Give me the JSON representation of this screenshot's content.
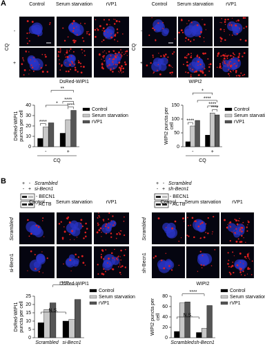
{
  "panel_a": {
    "label": "A",
    "left": {
      "columns": [
        "Control",
        "Serum starvation",
        "rVP1"
      ],
      "rows": [
        "-",
        "+"
      ],
      "side_label": "CQ",
      "caption": "DsRed-WIPI1"
    },
    "right": {
      "columns": [
        "Control",
        "Serum starvation",
        "rVP1"
      ],
      "rows": [
        "-",
        "+"
      ],
      "side_label": "CQ",
      "caption": "WIPI2"
    }
  },
  "panel_b": {
    "label": "B",
    "left": {
      "blot": {
        "rows": [
          {
            "signs": [
              "+",
              "-"
            ],
            "name": "Scrambled"
          },
          {
            "signs": [
              "-",
              "+"
            ],
            "name": "si-Becn1"
          }
        ],
        "bands": [
          "- BECN1",
          "- ACTB"
        ]
      },
      "columns": [
        "Control",
        "Serum starvation",
        "rVP1"
      ],
      "rows": [
        "Scrambled",
        "si-Becn1"
      ],
      "caption": "DsRed-WIPI1"
    },
    "right": {
      "blot": {
        "rows": [
          {
            "signs": [
              "+",
              "-"
            ],
            "name": "Scrambled"
          },
          {
            "signs": [
              "-",
              "+"
            ],
            "name": "sh-Becn1"
          }
        ],
        "bands": [
          "- BECN1",
          "- ACTB"
        ]
      },
      "columns": [
        "Control",
        "Serum starvation",
        "rVP1"
      ],
      "rows": [
        "Scrambled",
        "sh-Becn1"
      ],
      "caption": "WIPI2"
    }
  },
  "chart_data": [
    {
      "type": "bar",
      "y_label": "DsRed-WIPI1 puncta per cell",
      "x_label": "CQ",
      "categories": [
        "-",
        "+"
      ],
      "series": [
        {
          "name": "Control",
          "color": "#000000",
          "values": [
            8,
            13
          ]
        },
        {
          "name": "Serum starvation",
          "color": "#c8c8c8",
          "values": [
            19,
            26
          ]
        },
        {
          "name": "rVP1",
          "color": "#555555",
          "values": [
            23,
            35
          ]
        }
      ],
      "ylim": [
        0,
        40
      ],
      "yticks": [
        0,
        10,
        20,
        30,
        40
      ],
      "annotations": [
        "****",
        "*",
        "**",
        "****",
        "****"
      ]
    },
    {
      "type": "bar",
      "y_label": "WIPI2 puncta per cell",
      "x_label": "CQ",
      "categories": [
        "-",
        "+"
      ],
      "series": [
        {
          "name": "Control",
          "color": "#000000",
          "values": [
            18,
            42
          ]
        },
        {
          "name": "Serum starvation",
          "color": "#c8c8c8",
          "values": [
            75,
            122
          ]
        },
        {
          "name": "rVP1",
          "color": "#555555",
          "values": [
            95,
            115
          ]
        }
      ],
      "ylim": [
        0,
        150
      ],
      "yticks": [
        0,
        50,
        100,
        150
      ],
      "annotations": [
        "*",
        "****",
        "****",
        "****",
        "****"
      ]
    },
    {
      "type": "bar",
      "y_label": "DsRed-WIPI1 puncta per cell",
      "categories": [
        "Scrambled",
        "si-Becn1"
      ],
      "series": [
        {
          "name": "Control",
          "color": "#000000",
          "values": [
            9,
            10
          ]
        },
        {
          "name": "Serum starvation",
          "color": "#c8c8c8",
          "values": [
            17,
            11
          ]
        },
        {
          "name": "rVP1",
          "color": "#555555",
          "values": [
            21,
            23
          ]
        }
      ],
      "ylim": [
        0,
        25
      ],
      "yticks": [
        0,
        5,
        10,
        15,
        20,
        25
      ],
      "annotations": [
        "****",
        "N.S."
      ]
    },
    {
      "type": "bar",
      "y_label": "WIPI2 puncta per cell",
      "categories": [
        "Scrambled",
        "sh-Becn1"
      ],
      "series": [
        {
          "name": "Control",
          "color": "#000000",
          "values": [
            12,
            10
          ]
        },
        {
          "name": "Serum starvation",
          "color": "#c8c8c8",
          "values": [
            67,
            18
          ]
        },
        {
          "name": "rVP1",
          "color": "#555555",
          "values": [
            69,
            62
          ]
        }
      ],
      "ylim": [
        0,
        80
      ],
      "yticks": [
        0,
        20,
        40,
        60,
        80
      ],
      "annotations": [
        "N.S.",
        "****"
      ]
    }
  ]
}
